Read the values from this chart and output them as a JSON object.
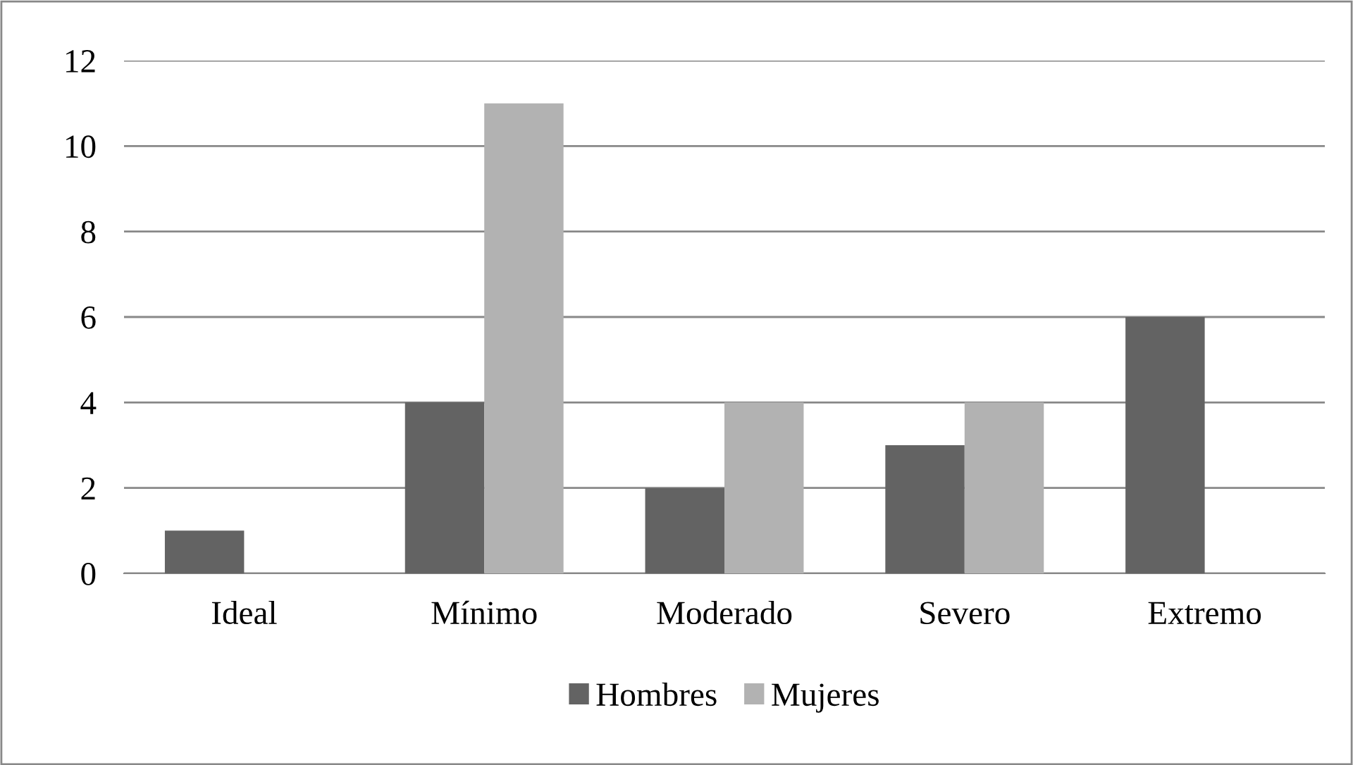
{
  "chart_data": {
    "type": "bar",
    "categories": [
      "Ideal",
      "Mínimo",
      "Moderado",
      "Severo",
      "Extremo"
    ],
    "series": [
      {
        "name": "Hombres",
        "color": "#636363",
        "values": [
          1,
          4,
          2,
          3,
          6
        ]
      },
      {
        "name": "Mujeres",
        "color": "#b2b2b2",
        "values": [
          0,
          11,
          4,
          4,
          0
        ]
      }
    ],
    "ylim": [
      0,
      12
    ],
    "yticks": [
      0,
      2,
      4,
      6,
      8,
      10,
      12
    ],
    "grid": "y",
    "legend": "bottom"
  }
}
